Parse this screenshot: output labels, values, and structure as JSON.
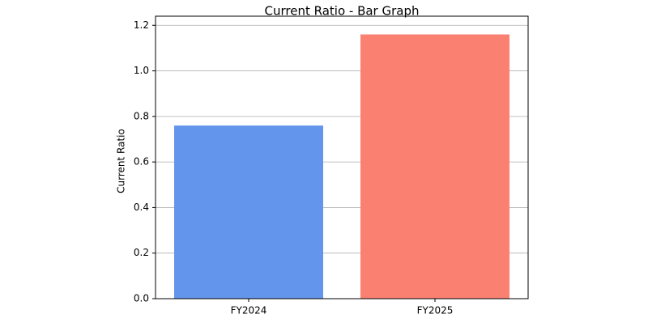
{
  "chart_data": {
    "type": "bar",
    "title": "Current Ratio - Bar Graph",
    "y_label": "Current Ratio",
    "categories": [
      "FY2024",
      "FY2025"
    ],
    "values": [
      0.76,
      1.16
    ],
    "colors": [
      "#6495ED",
      "#FA8072"
    ],
    "ylim": [
      0,
      1.24
    ],
    "yticks": [
      {
        "value": 0,
        "label": "0.0"
      },
      0.2,
      0.4,
      0.6,
      0.8,
      {
        "value": 1,
        "label": "1.0"
      },
      1.2
    ],
    "grid": true
  }
}
